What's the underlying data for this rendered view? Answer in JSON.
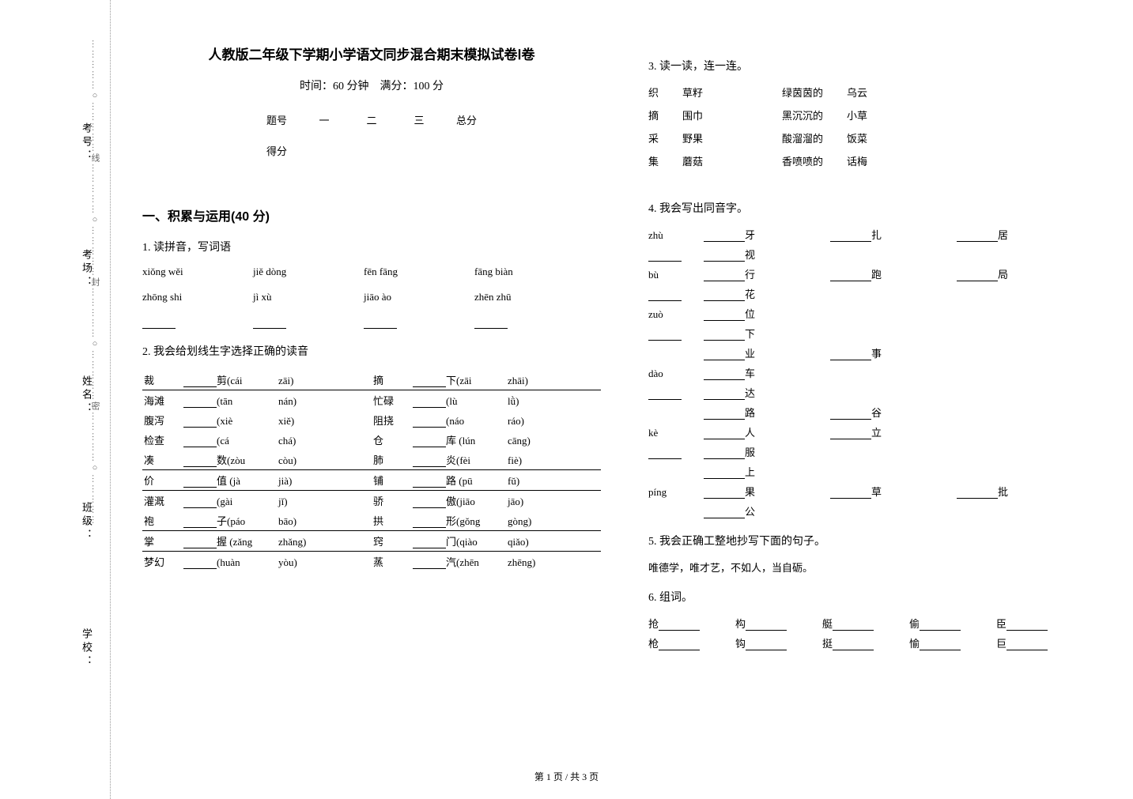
{
  "title": "人教版二年级下学期小学语文同步混合期末模拟试卷Ⅰ卷",
  "subtitle": "时间：60 分钟　满分：100 分",
  "score_header": [
    "题号",
    "一",
    "二",
    "三",
    "总分"
  ],
  "score_row2": "得分",
  "sidebar": [
    "考号：",
    "考场：",
    "姓名：",
    "班级：",
    "学校："
  ],
  "dots_text": "……………○……………线……………○……………封……………○……………密……………○……………",
  "section1": "一、积累与运用(40 分)",
  "q1": {
    "title": "1. 读拼音，写词语",
    "row1": [
      "xiǒng wěi",
      "jiě dòng",
      "fēn fāng",
      "fāng biàn"
    ],
    "row2": [
      "zhōng shi",
      "jì xù",
      "jiāo ào",
      "zhēn zhū"
    ]
  },
  "q2": {
    "title": "2. 我会给划线生字选择正确的读音",
    "rows": [
      {
        "u": true,
        "l": [
          "裁",
          "剪(cái",
          "zāi)"
        ],
        "r": [
          "摘",
          "下(zāi",
          "zhāi)"
        ]
      },
      {
        "u": false,
        "l": [
          "海滩",
          "(tān",
          "nán)"
        ],
        "r": [
          "忙碌",
          "(lù",
          "lǜ)"
        ]
      },
      {
        "u": false,
        "l": [
          "腹泻",
          "(xiè",
          "xiě)"
        ],
        "r": [
          "阻挠",
          "(náo",
          "ráo)"
        ]
      },
      {
        "u": false,
        "l": [
          "检查",
          "(cá",
          "chá)"
        ],
        "r": [
          "仓",
          "库 (lún",
          "cāng)"
        ]
      },
      {
        "u": true,
        "l": [
          "凑",
          "数(zòu",
          "còu)"
        ],
        "r": [
          "肺",
          "炎(fèi",
          "fiè)"
        ]
      },
      {
        "u": true,
        "l": [
          "价",
          "值 (jà",
          "jià)"
        ],
        "r": [
          "铺",
          "路 (pū",
          "fǔ)"
        ]
      },
      {
        "u": false,
        "l": [
          "灌溉",
          "(gài",
          "jǐ)"
        ],
        "r": [
          "骄",
          "傲(jiāo",
          "jāo)"
        ]
      },
      {
        "u": true,
        "l": [
          "袍",
          "子(páo",
          "bāo)"
        ],
        "r": [
          "拱",
          "形(gǒng",
          "gòng)"
        ]
      },
      {
        "u": true,
        "l": [
          "掌",
          "握 (zǎng",
          "zhǎng)"
        ],
        "r": [
          "窍",
          "门(qiào",
          "qiǎo)"
        ]
      },
      {
        "u": false,
        "l": [
          "梦幻",
          "(huàn",
          "yòu)"
        ],
        "r": [
          "蒸",
          "汽(zhēn",
          "zhēng)"
        ]
      }
    ]
  },
  "q3": {
    "title": "3. 读一读，连一连。",
    "left_a": [
      "织",
      "摘",
      "采",
      "集"
    ],
    "left_b": [
      "草籽",
      "围巾",
      "野果",
      "蘑菇"
    ],
    "right_a": [
      "绿茵茵的",
      "黑沉沉的",
      "酸溜溜的",
      "香喷喷的"
    ],
    "right_b": [
      "乌云",
      "小草",
      "饭菜",
      "话梅"
    ]
  },
  "q4": {
    "title": "4. 我会写出同音字。",
    "rows": [
      {
        "p": "zhù",
        "a": "牙",
        "b": "扎",
        "c": "居",
        "d": "视"
      },
      {
        "p": "bù",
        "a": "行",
        "b": "跑",
        "c": "局",
        "d": "花"
      },
      {
        "p": "zuò",
        "a": "位",
        "b": "",
        "c": "",
        "d": "下"
      },
      {
        "p": "",
        "a": "业",
        "b": "事",
        "c": "",
        "d": ""
      },
      {
        "p": "dào",
        "a": "车",
        "b": "",
        "c": "",
        "d": "达"
      },
      {
        "p": "",
        "a": "路",
        "b": "谷",
        "c": "",
        "d": ""
      },
      {
        "p": "kè",
        "a": "人",
        "b": "立",
        "c": "",
        "d": "服"
      },
      {
        "p": "",
        "a": "上",
        "b": "",
        "c": "",
        "d": ""
      },
      {
        "p": "píng",
        "a": "果",
        "b": "草",
        "c": "批",
        "d": ""
      },
      {
        "p": "",
        "a": "公",
        "b": "",
        "c": "",
        "d": ""
      }
    ]
  },
  "q5": {
    "title": "5. 我会正确工整地抄写下面的句子。",
    "text": "唯德学，唯才艺，不如人，当自砺。"
  },
  "q6": {
    "title": "6. 组词。",
    "row1": [
      "抢",
      "构",
      "艇",
      "偷",
      "臣"
    ],
    "row2": [
      "枪",
      "钩",
      "挺",
      "愉",
      "巨"
    ]
  },
  "footer": "第 1 页 / 共 3 页"
}
